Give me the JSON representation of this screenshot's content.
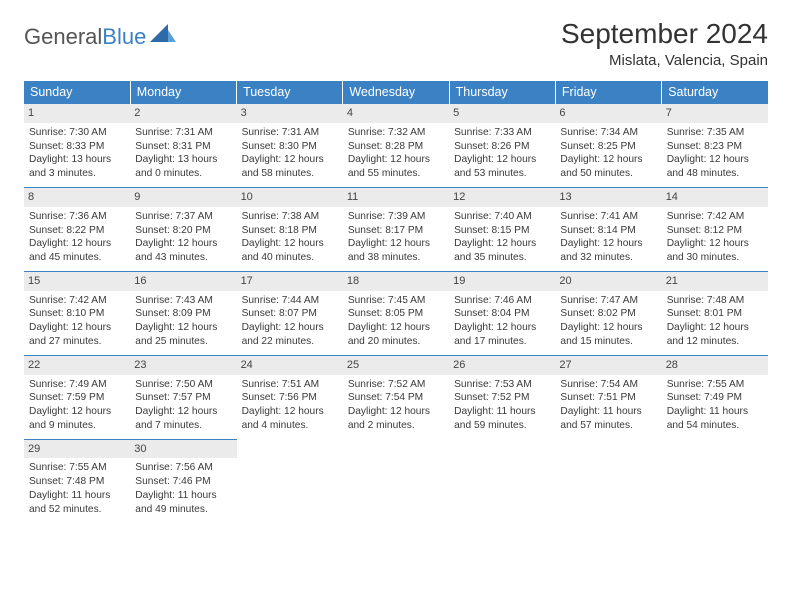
{
  "logo": {
    "text1": "General",
    "text2": "Blue"
  },
  "title": "September 2024",
  "location": "Mislata, Valencia, Spain",
  "colors": {
    "accent": "#3b82c4",
    "header_bg": "#3b82c4",
    "daynum_bg": "#ebebeb"
  },
  "day_headers": [
    "Sunday",
    "Monday",
    "Tuesday",
    "Wednesday",
    "Thursday",
    "Friday",
    "Saturday"
  ],
  "weeks": [
    [
      {
        "n": "1",
        "sr": "Sunrise: 7:30 AM",
        "ss": "Sunset: 8:33 PM",
        "dl1": "Daylight: 13 hours",
        "dl2": "and 3 minutes."
      },
      {
        "n": "2",
        "sr": "Sunrise: 7:31 AM",
        "ss": "Sunset: 8:31 PM",
        "dl1": "Daylight: 13 hours",
        "dl2": "and 0 minutes."
      },
      {
        "n": "3",
        "sr": "Sunrise: 7:31 AM",
        "ss": "Sunset: 8:30 PM",
        "dl1": "Daylight: 12 hours",
        "dl2": "and 58 minutes."
      },
      {
        "n": "4",
        "sr": "Sunrise: 7:32 AM",
        "ss": "Sunset: 8:28 PM",
        "dl1": "Daylight: 12 hours",
        "dl2": "and 55 minutes."
      },
      {
        "n": "5",
        "sr": "Sunrise: 7:33 AM",
        "ss": "Sunset: 8:26 PM",
        "dl1": "Daylight: 12 hours",
        "dl2": "and 53 minutes."
      },
      {
        "n": "6",
        "sr": "Sunrise: 7:34 AM",
        "ss": "Sunset: 8:25 PM",
        "dl1": "Daylight: 12 hours",
        "dl2": "and 50 minutes."
      },
      {
        "n": "7",
        "sr": "Sunrise: 7:35 AM",
        "ss": "Sunset: 8:23 PM",
        "dl1": "Daylight: 12 hours",
        "dl2": "and 48 minutes."
      }
    ],
    [
      {
        "n": "8",
        "sr": "Sunrise: 7:36 AM",
        "ss": "Sunset: 8:22 PM",
        "dl1": "Daylight: 12 hours",
        "dl2": "and 45 minutes."
      },
      {
        "n": "9",
        "sr": "Sunrise: 7:37 AM",
        "ss": "Sunset: 8:20 PM",
        "dl1": "Daylight: 12 hours",
        "dl2": "and 43 minutes."
      },
      {
        "n": "10",
        "sr": "Sunrise: 7:38 AM",
        "ss": "Sunset: 8:18 PM",
        "dl1": "Daylight: 12 hours",
        "dl2": "and 40 minutes."
      },
      {
        "n": "11",
        "sr": "Sunrise: 7:39 AM",
        "ss": "Sunset: 8:17 PM",
        "dl1": "Daylight: 12 hours",
        "dl2": "and 38 minutes."
      },
      {
        "n": "12",
        "sr": "Sunrise: 7:40 AM",
        "ss": "Sunset: 8:15 PM",
        "dl1": "Daylight: 12 hours",
        "dl2": "and 35 minutes."
      },
      {
        "n": "13",
        "sr": "Sunrise: 7:41 AM",
        "ss": "Sunset: 8:14 PM",
        "dl1": "Daylight: 12 hours",
        "dl2": "and 32 minutes."
      },
      {
        "n": "14",
        "sr": "Sunrise: 7:42 AM",
        "ss": "Sunset: 8:12 PM",
        "dl1": "Daylight: 12 hours",
        "dl2": "and 30 minutes."
      }
    ],
    [
      {
        "n": "15",
        "sr": "Sunrise: 7:42 AM",
        "ss": "Sunset: 8:10 PM",
        "dl1": "Daylight: 12 hours",
        "dl2": "and 27 minutes."
      },
      {
        "n": "16",
        "sr": "Sunrise: 7:43 AM",
        "ss": "Sunset: 8:09 PM",
        "dl1": "Daylight: 12 hours",
        "dl2": "and 25 minutes."
      },
      {
        "n": "17",
        "sr": "Sunrise: 7:44 AM",
        "ss": "Sunset: 8:07 PM",
        "dl1": "Daylight: 12 hours",
        "dl2": "and 22 minutes."
      },
      {
        "n": "18",
        "sr": "Sunrise: 7:45 AM",
        "ss": "Sunset: 8:05 PM",
        "dl1": "Daylight: 12 hours",
        "dl2": "and 20 minutes."
      },
      {
        "n": "19",
        "sr": "Sunrise: 7:46 AM",
        "ss": "Sunset: 8:04 PM",
        "dl1": "Daylight: 12 hours",
        "dl2": "and 17 minutes."
      },
      {
        "n": "20",
        "sr": "Sunrise: 7:47 AM",
        "ss": "Sunset: 8:02 PM",
        "dl1": "Daylight: 12 hours",
        "dl2": "and 15 minutes."
      },
      {
        "n": "21",
        "sr": "Sunrise: 7:48 AM",
        "ss": "Sunset: 8:01 PM",
        "dl1": "Daylight: 12 hours",
        "dl2": "and 12 minutes."
      }
    ],
    [
      {
        "n": "22",
        "sr": "Sunrise: 7:49 AM",
        "ss": "Sunset: 7:59 PM",
        "dl1": "Daylight: 12 hours",
        "dl2": "and 9 minutes."
      },
      {
        "n": "23",
        "sr": "Sunrise: 7:50 AM",
        "ss": "Sunset: 7:57 PM",
        "dl1": "Daylight: 12 hours",
        "dl2": "and 7 minutes."
      },
      {
        "n": "24",
        "sr": "Sunrise: 7:51 AM",
        "ss": "Sunset: 7:56 PM",
        "dl1": "Daylight: 12 hours",
        "dl2": "and 4 minutes."
      },
      {
        "n": "25",
        "sr": "Sunrise: 7:52 AM",
        "ss": "Sunset: 7:54 PM",
        "dl1": "Daylight: 12 hours",
        "dl2": "and 2 minutes."
      },
      {
        "n": "26",
        "sr": "Sunrise: 7:53 AM",
        "ss": "Sunset: 7:52 PM",
        "dl1": "Daylight: 11 hours",
        "dl2": "and 59 minutes."
      },
      {
        "n": "27",
        "sr": "Sunrise: 7:54 AM",
        "ss": "Sunset: 7:51 PM",
        "dl1": "Daylight: 11 hours",
        "dl2": "and 57 minutes."
      },
      {
        "n": "28",
        "sr": "Sunrise: 7:55 AM",
        "ss": "Sunset: 7:49 PM",
        "dl1": "Daylight: 11 hours",
        "dl2": "and 54 minutes."
      }
    ],
    [
      {
        "n": "29",
        "sr": "Sunrise: 7:55 AM",
        "ss": "Sunset: 7:48 PM",
        "dl1": "Daylight: 11 hours",
        "dl2": "and 52 minutes."
      },
      {
        "n": "30",
        "sr": "Sunrise: 7:56 AM",
        "ss": "Sunset: 7:46 PM",
        "dl1": "Daylight: 11 hours",
        "dl2": "and 49 minutes."
      },
      null,
      null,
      null,
      null,
      null
    ]
  ]
}
